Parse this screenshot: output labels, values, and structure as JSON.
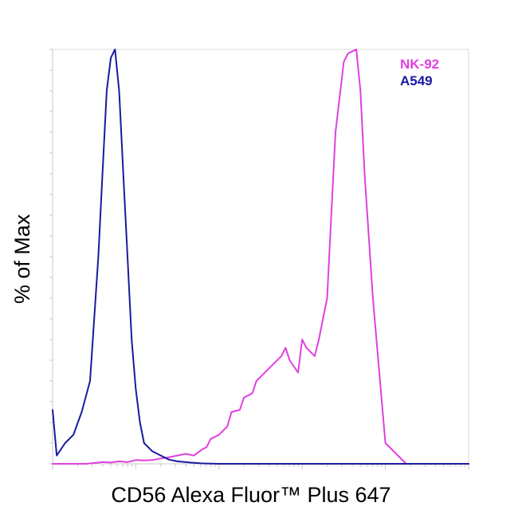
{
  "chart_data": {
    "type": "line",
    "title": "",
    "xlabel": "CD56 Alexa Fluor™ Plus 647",
    "ylabel": "% of Max",
    "x_scale": "log",
    "x_tick_labels": [],
    "y_tick_labels": [],
    "grid": false,
    "legend_position": "top-right",
    "ylim": [
      0,
      100
    ],
    "series": [
      {
        "name": "NK-92",
        "color": "#e040e0",
        "x": [
          0.0,
          0.02,
          0.05,
          0.08,
          0.1,
          0.12,
          0.14,
          0.16,
          0.18,
          0.2,
          0.22,
          0.24,
          0.26,
          0.28,
          0.3,
          0.32,
          0.34,
          0.36,
          0.37,
          0.38,
          0.4,
          0.42,
          0.43,
          0.45,
          0.46,
          0.48,
          0.49,
          0.5,
          0.52,
          0.53,
          0.55,
          0.56,
          0.57,
          0.59,
          0.6,
          0.61,
          0.63,
          0.64,
          0.66,
          0.67,
          0.68,
          0.7,
          0.71,
          0.73,
          0.74,
          0.75,
          0.77,
          0.8,
          0.85,
          0.9,
          0.95,
          1.0
        ],
        "y": [
          0,
          0,
          0,
          0,
          0.2,
          0.4,
          0.3,
          0.6,
          0.4,
          0.9,
          0.8,
          0.9,
          1.3,
          1.6,
          2.0,
          2.4,
          2.0,
          3.5,
          4.0,
          6.0,
          7.0,
          9.0,
          12.5,
          13.0,
          16.0,
          17.0,
          20.0,
          21.0,
          23.0,
          24.0,
          26.0,
          28.0,
          25.0,
          22.0,
          30.0,
          28.0,
          26.0,
          30.0,
          40.0,
          60.0,
          80.0,
          97.0,
          99.0,
          100.0,
          90.0,
          70.0,
          40.0,
          5.0,
          0,
          0,
          0,
          0
        ]
      },
      {
        "name": "A549",
        "color": "#1a1aa0",
        "x": [
          0.0,
          0.01,
          0.03,
          0.05,
          0.07,
          0.09,
          0.1,
          0.11,
          0.12,
          0.13,
          0.14,
          0.15,
          0.16,
          0.17,
          0.18,
          0.19,
          0.2,
          0.21,
          0.22,
          0.24,
          0.26,
          0.28,
          0.3,
          0.33,
          0.36,
          0.4,
          0.5,
          0.6,
          0.7,
          0.8,
          0.9,
          1.0
        ],
        "y": [
          13.0,
          2.0,
          5.0,
          7.0,
          12.5,
          20.0,
          35.0,
          50.0,
          70.0,
          90.0,
          98.0,
          100.0,
          90.0,
          70.0,
          50.0,
          30.0,
          18.0,
          10.0,
          5.0,
          3.0,
          2.0,
          1.0,
          0.6,
          0.3,
          0.1,
          0.0,
          0.0,
          0.0,
          0.0,
          0.0,
          0.0,
          0.0
        ]
      }
    ]
  }
}
